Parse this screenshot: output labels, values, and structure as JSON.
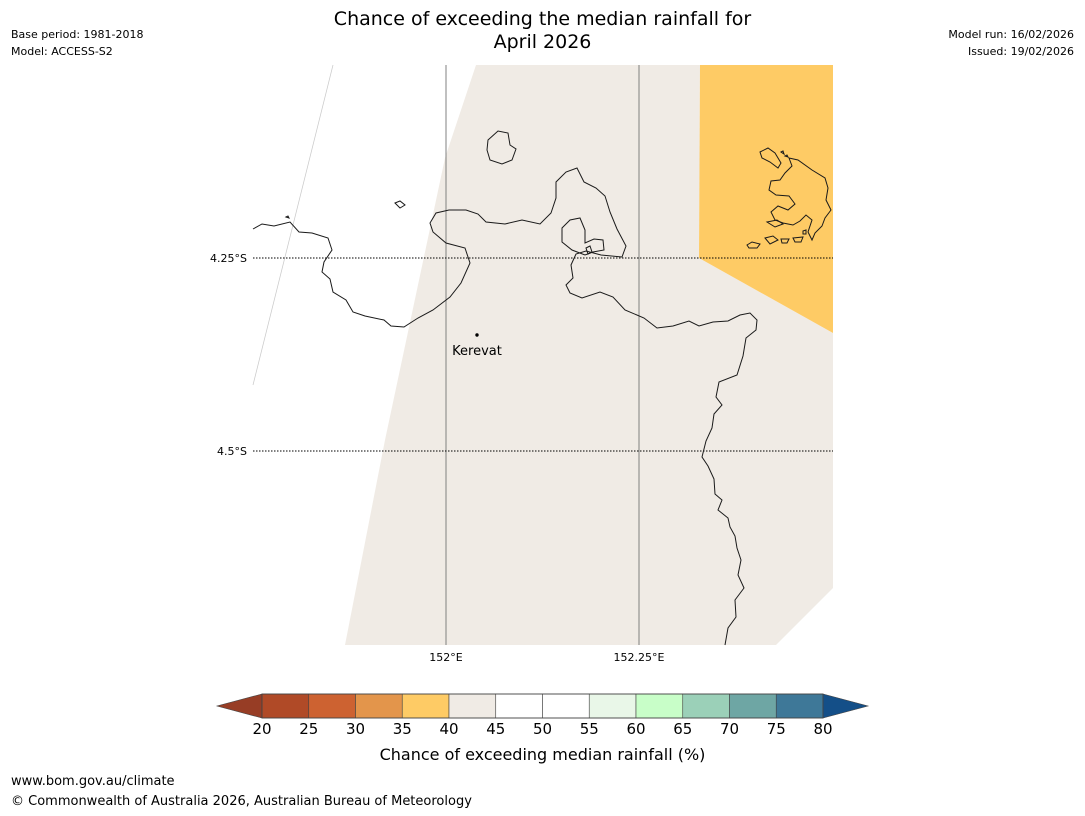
{
  "title": {
    "line1": "Chance of exceeding the median rainfall for",
    "line2": "April 2026"
  },
  "meta_left": {
    "base_period": "Base period: 1981-2018",
    "model": "Model: ACCESS-S2"
  },
  "meta_right": {
    "model_run": "Model run: 16/02/2026",
    "issued": "Issued: 19/02/2026"
  },
  "map": {
    "lat_labels": [
      "4.25°S",
      "4.5°S"
    ],
    "lon_labels": [
      "152°E",
      "152.25°E"
    ],
    "place": "Kerevat",
    "colors": {
      "land_40_45": "#f0ebe5",
      "land_35_40": "#fecb65",
      "coast": "#1a1a1a"
    }
  },
  "colorbar": {
    "ticks": [
      "20",
      "25",
      "30",
      "35",
      "40",
      "45",
      "50",
      "55",
      "60",
      "65",
      "70",
      "75",
      "80"
    ],
    "colors": [
      "#b04a27",
      "#cd6231",
      "#e3954b",
      "#fecb65",
      "#f0ebe5",
      "#ffffff",
      "#ffffff",
      "#e9f7e8",
      "#c8fec8",
      "#9bd0b8",
      "#6ea6a4",
      "#3e7898"
    ],
    "under_color": "#973d25",
    "over_color": "#144f88",
    "label": "Chance of exceeding median rainfall (%)"
  },
  "footer": {
    "url": "www.bom.gov.au/climate",
    "copyright": "© Commonwealth of Australia 2026, Australian Bureau of Meteorology"
  }
}
